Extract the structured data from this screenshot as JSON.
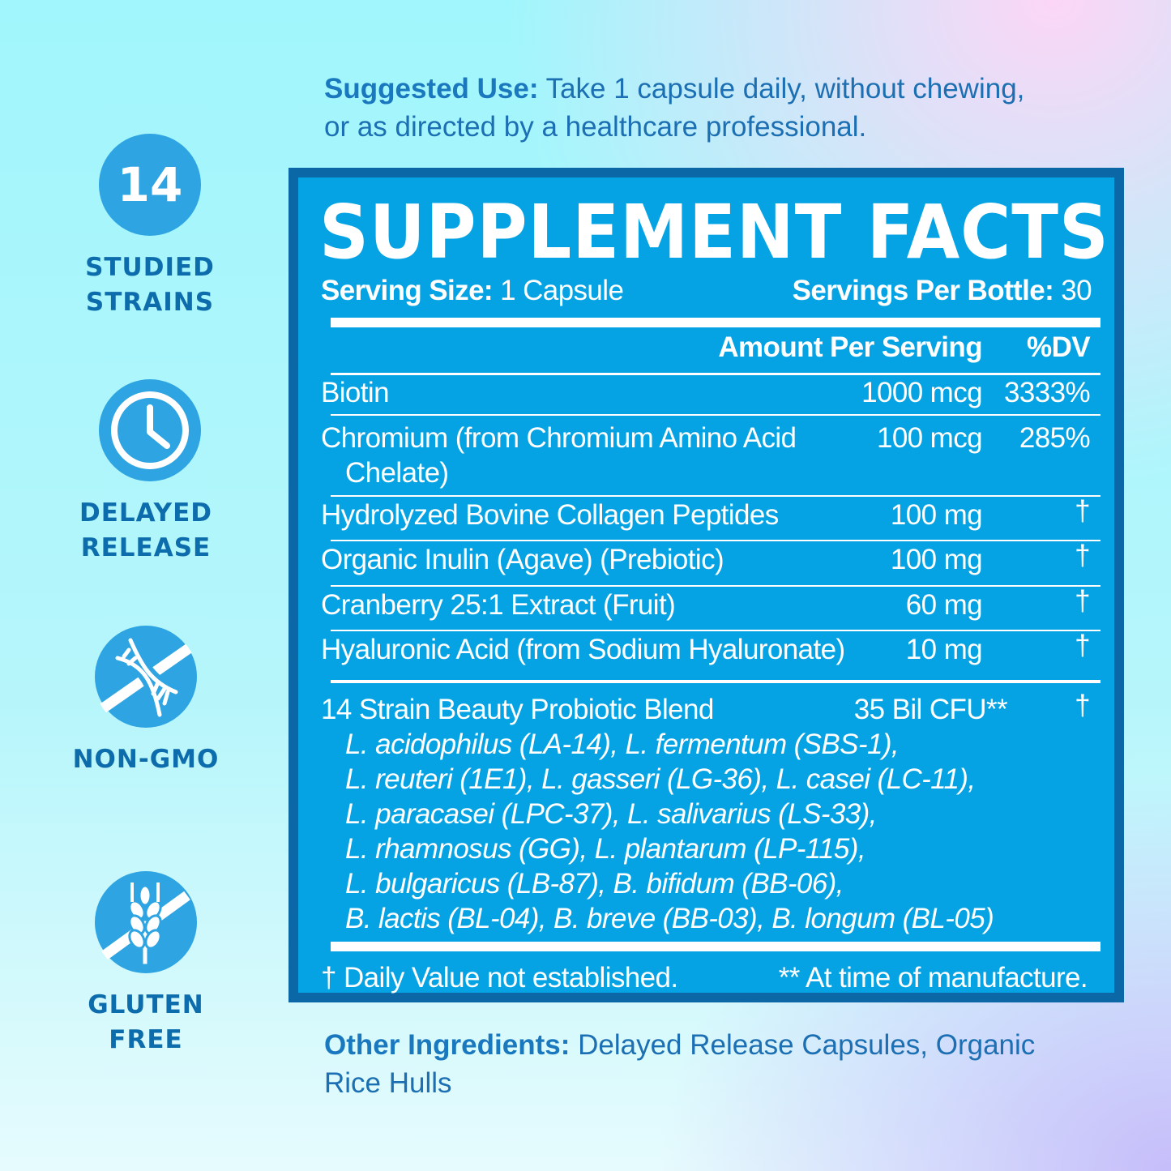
{
  "suggested_use": {
    "label": "Suggested Use:",
    "text_line1": " Take 1 capsule daily, without chewing,",
    "text_line2": "or as directed by a healthcare professional."
  },
  "badges": [
    {
      "icon": "number-14",
      "number": "14",
      "line1": "STUDIED",
      "line2": "STRAINS"
    },
    {
      "icon": "clock-icon",
      "line1": "DELAYED",
      "line2": "RELEASE"
    },
    {
      "icon": "dna-crossed-icon",
      "line1": "NON-GMO"
    },
    {
      "icon": "wheat-crossed-icon",
      "line1": "GLUTEN",
      "line2": "FREE"
    }
  ],
  "facts": {
    "title": "SUPPLEMENT FACTS",
    "serving_size_label": "Serving Size:",
    "serving_size": " 1 Capsule",
    "servings_label": "Servings Per Bottle:",
    "servings": " 30",
    "col_amount": "Amount Per Serving",
    "col_dv": "%DV",
    "rows": [
      {
        "name": "Biotin",
        "amount": "1000 mcg",
        "dv": "3333%"
      },
      {
        "name": "Chromium (from Chromium Amino Acid",
        "name2": "Chelate)",
        "amount": "100 mcg",
        "dv": "285%"
      },
      {
        "name": "Hydrolyzed Bovine Collagen Peptides",
        "amount": "100 mg",
        "dv": "†"
      },
      {
        "name": "Organic Inulin (Agave) (Prebiotic)",
        "amount": "100 mg",
        "dv": "†"
      },
      {
        "name": "Cranberry 25:1 Extract (Fruit)",
        "amount": "60 mg",
        "dv": "†"
      },
      {
        "name": "Hyaluronic Acid (from Sodium Hyaluronate)",
        "amount": "10 mg",
        "dv": "†"
      }
    ],
    "blend": {
      "name": "14 Strain Beauty Probiotic Blend",
      "amount": "35 Bil CFU**",
      "dv": "†",
      "strains": [
        "L. acidophilus (LA-14), L. fermentum (SBS-1),",
        "L. reuteri (1E1), L. gasseri (LG-36), L. casei (LC-11),",
        "L. paracasei (LPC-37), L. salivarius (LS-33),",
        "L. rhamnosus (GG), L. plantarum (LP-115),",
        "L. bulgaricus (LB-87), B. bifidum (BB-06),",
        "B. lactis (BL-04), B. breve (BB-03), B. longum (BL-05)"
      ]
    },
    "footnote_dagger": "† Daily Value not established.",
    "footnote_star": "** At time of manufacture."
  },
  "other_ingredients": {
    "label": "Other Ingredients:",
    "text_line1": " Delayed Release Capsules, Organic",
    "text_line2": "Rice Hulls"
  },
  "colors": {
    "panel": "#05a3e3",
    "panel_border": "#0b67a5",
    "icon": "#2ea4e2",
    "text_blue": "#1b6fb2"
  }
}
